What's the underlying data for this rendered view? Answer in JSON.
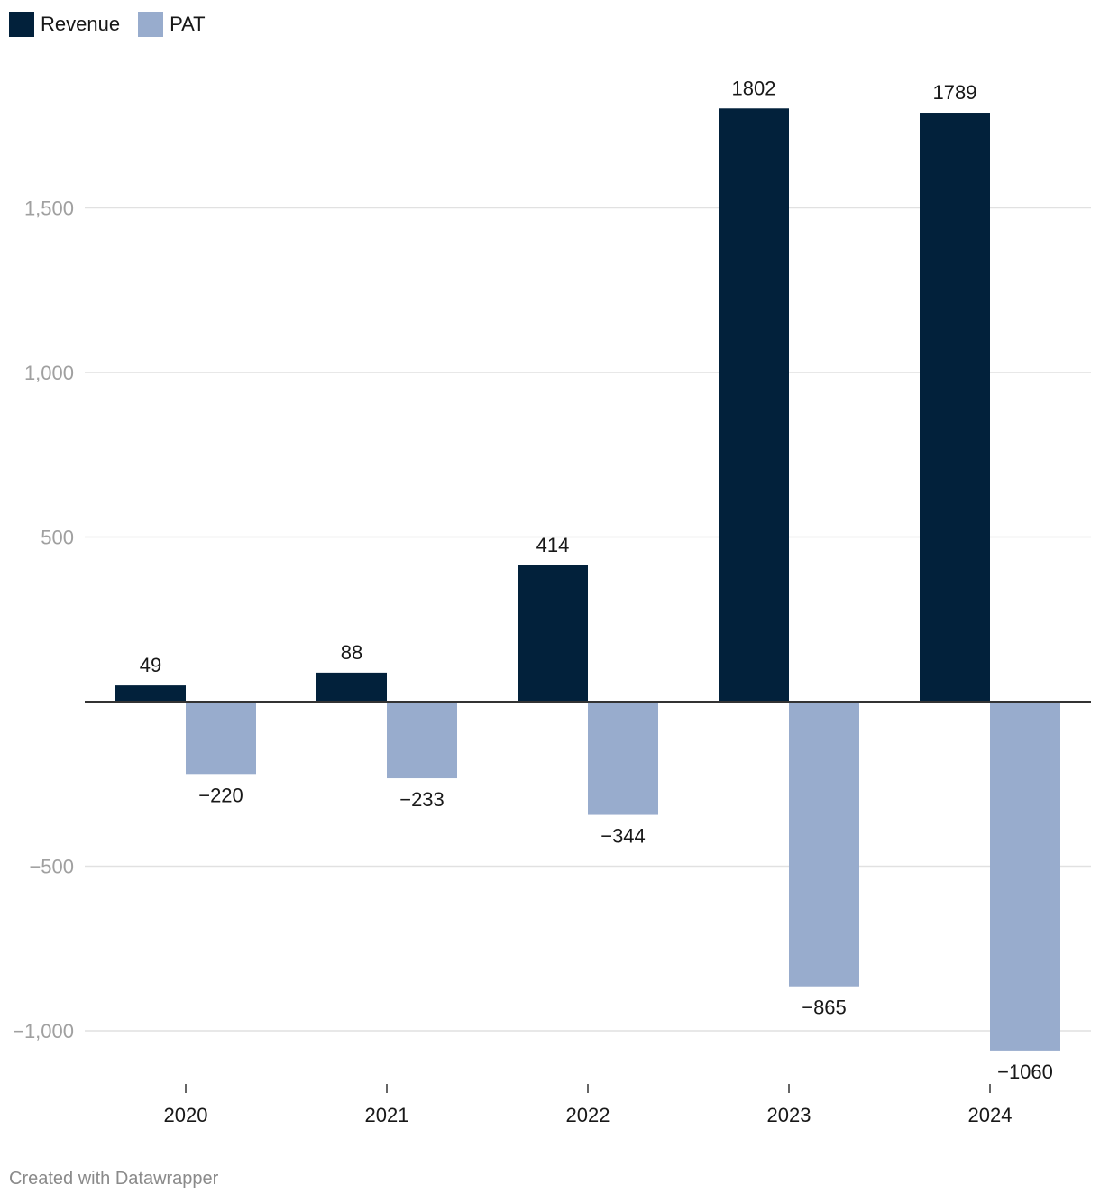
{
  "legend": {
    "revenue_label": "Revenue",
    "pat_label": "PAT"
  },
  "footer": {
    "credit": "Created with Datawrapper"
  },
  "colors": {
    "revenue": "#02213b",
    "pat": "#98accd",
    "grid": "#e1e1e1",
    "axis_label": "#a0a0a0",
    "baseline": "#333333"
  },
  "chart_data": {
    "type": "bar",
    "title": "",
    "xlabel": "",
    "ylabel": "",
    "categories": [
      "2020",
      "2021",
      "2022",
      "2023",
      "2024"
    ],
    "series": [
      {
        "name": "Revenue",
        "values": [
          49,
          88,
          414,
          1802,
          1789
        ],
        "labels": [
          "49",
          "88",
          "414",
          "1802",
          "1789"
        ]
      },
      {
        "name": "PAT",
        "values": [
          -220,
          -233,
          -344,
          -865,
          -1060
        ],
        "labels": [
          "−220",
          "−233",
          "−344",
          "−865",
          "−1060"
        ]
      }
    ],
    "ylim": [
      -1100,
      1900
    ],
    "yticks": [
      1500,
      1000,
      500,
      -500,
      -1000
    ],
    "ytick_labels": [
      "1,500",
      "1,000",
      "500",
      "−500",
      "−1,000"
    ],
    "grid": true,
    "legend_position": "top-left"
  }
}
